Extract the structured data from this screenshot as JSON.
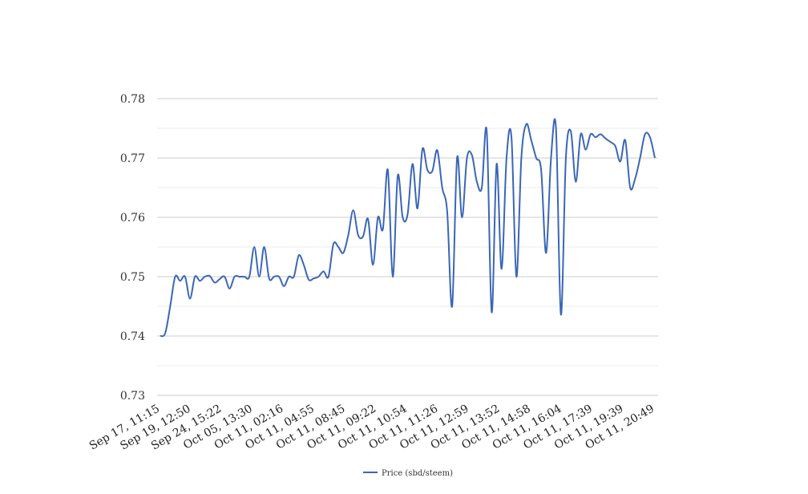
{
  "chart_data": {
    "type": "line",
    "title": "",
    "xlabel": "",
    "ylabel": "",
    "ylim": [
      0.73,
      0.78
    ],
    "y_ticks": [
      "0.73",
      "0.74",
      "0.75",
      "0.76",
      "0.77",
      "0.78"
    ],
    "y_tick_values": [
      0.73,
      0.74,
      0.75,
      0.76,
      0.77,
      0.78
    ],
    "x_tick_labels": [
      "Sep 17, 11:15",
      "Sep 19, 12:50",
      "Sep 24, 15:22",
      "Oct 05, 13:30",
      "Oct 11, 02:16",
      "Oct 11, 04:55",
      "Oct 11, 08:45",
      "Oct 11, 09:22",
      "Oct 11, 10:54",
      "Oct 11, 11:26",
      "Oct 11, 12:59",
      "Oct 11, 13:52",
      "Oct 11, 14:58",
      "Oct 11, 16:04",
      "Oct 11, 17:39",
      "Oct 11, 19:39",
      "Oct 11, 20:49"
    ],
    "grid": true,
    "legend_position": "bottom",
    "series": [
      {
        "name": "Price (sbd/steem)",
        "color": "#3a66b8",
        "values": [
          0.74,
          0.7405,
          0.745,
          0.75,
          0.7493,
          0.75,
          0.7463,
          0.75,
          0.7493,
          0.75,
          0.7501,
          0.749,
          0.7496,
          0.75,
          0.748,
          0.75,
          0.75,
          0.75,
          0.75,
          0.755,
          0.75,
          0.755,
          0.7497,
          0.75,
          0.75,
          0.7484,
          0.75,
          0.75,
          0.7536,
          0.752,
          0.7495,
          0.7497,
          0.75,
          0.7509,
          0.75,
          0.7555,
          0.755,
          0.754,
          0.757,
          0.7612,
          0.757,
          0.7568,
          0.7597,
          0.752,
          0.76,
          0.758,
          0.768,
          0.75,
          0.767,
          0.76,
          0.7605,
          0.769,
          0.7615,
          0.7715,
          0.768,
          0.7678,
          0.7713,
          0.765,
          0.761,
          0.745,
          0.77,
          0.76,
          0.77,
          0.7705,
          0.766,
          0.765,
          0.7745,
          0.744,
          0.769,
          0.7513,
          0.77,
          0.7735,
          0.75,
          0.77,
          0.7757,
          0.773,
          0.77,
          0.768,
          0.754,
          0.77,
          0.775,
          0.7436,
          0.77,
          0.7745,
          0.766,
          0.774,
          0.7714,
          0.774,
          0.7735,
          0.774,
          0.7733,
          0.7727,
          0.772,
          0.7694,
          0.773,
          0.765,
          0.7665,
          0.77,
          0.774,
          0.7735,
          0.77
        ]
      }
    ]
  }
}
